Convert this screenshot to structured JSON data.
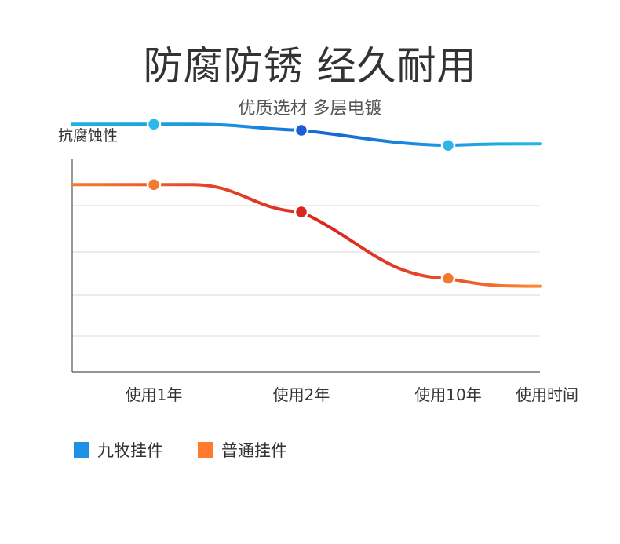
{
  "title": "防腐防锈 经久耐用",
  "subtitle": "优质选材 多层电镀",
  "chart_data": {
    "type": "line",
    "ylabel": "抗腐蚀性",
    "xlabel": "使用时间",
    "categories": [
      "使用1年",
      "使用2年",
      "使用10年"
    ],
    "ylim": [
      0,
      100
    ],
    "grid": true,
    "legend_position": "bottom-left",
    "series": [
      {
        "name": "九牧挂件",
        "color": "#1E90E6",
        "values": [
          82,
          80,
          75
        ]
      },
      {
        "name": "普通挂件",
        "color": "#FF7A2E",
        "values": [
          62,
          53,
          31
        ]
      }
    ]
  }
}
